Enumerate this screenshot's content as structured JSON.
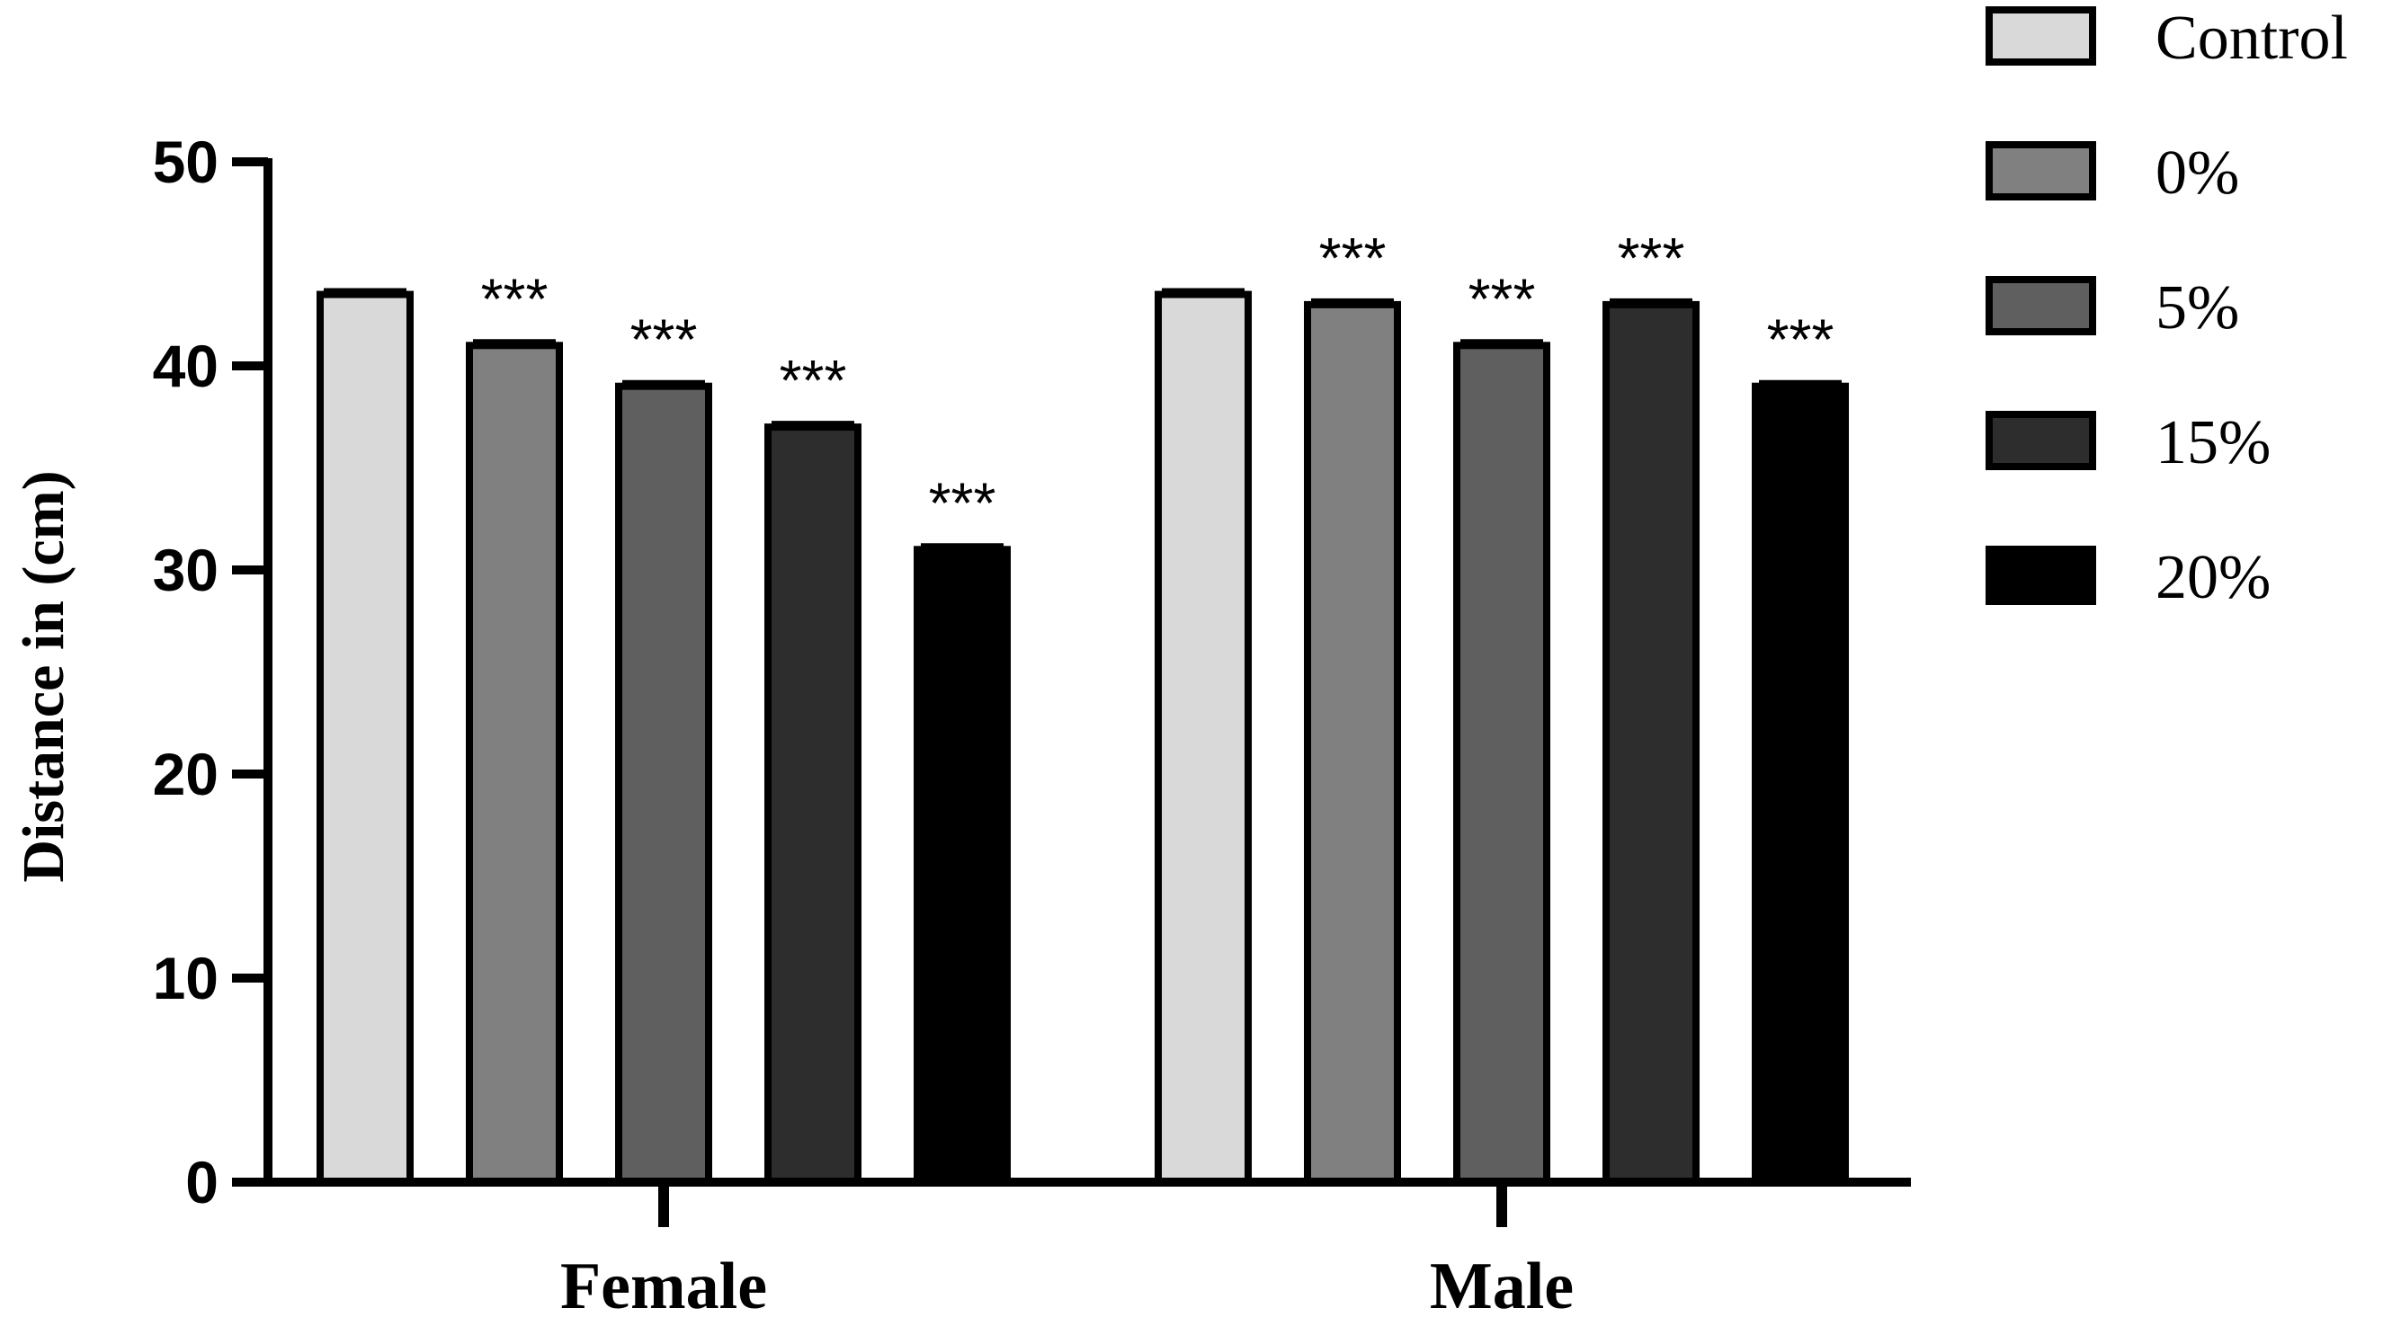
{
  "chart_data": {
    "type": "bar",
    "title": "",
    "xlabel": "",
    "ylabel": "Distance in (cm)",
    "ylim": [
      0,
      50
    ],
    "yticks": [
      0,
      10,
      20,
      30,
      40,
      50
    ],
    "ytick_labels": [
      "0",
      "10",
      "20",
      "30",
      "40",
      "50"
    ],
    "categories": [
      "Female",
      "Male"
    ],
    "grid": false,
    "legend_position": "top-right",
    "series": [
      {
        "name": "Control",
        "color": "#d9d9d9",
        "values": [
          43.5,
          43.5
        ],
        "significance": [
          "",
          ""
        ]
      },
      {
        "name": "0%",
        "color": "#808080",
        "values": [
          41,
          43
        ],
        "significance": [
          "***",
          "***"
        ]
      },
      {
        "name": "5%",
        "color": "#5f5f5f",
        "values": [
          39,
          41
        ],
        "significance": [
          "***",
          "***"
        ]
      },
      {
        "name": "15%",
        "color": "#2d2d2d",
        "values": [
          37,
          43
        ],
        "significance": [
          "***",
          "***"
        ]
      },
      {
        "name": "20%",
        "color": "#000000",
        "values": [
          31,
          39
        ],
        "significance": [
          "***",
          "***"
        ]
      }
    ]
  }
}
